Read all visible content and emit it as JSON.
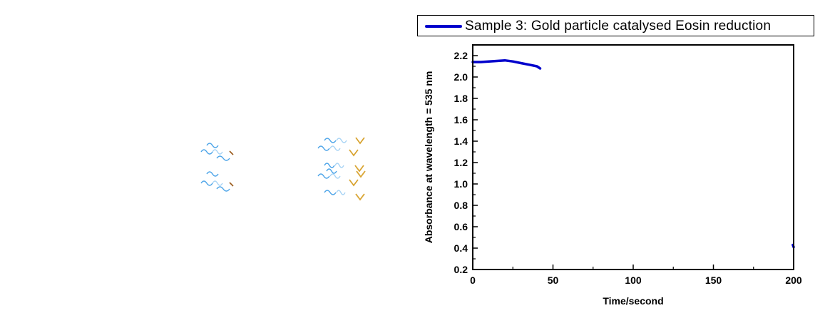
{
  "chart_data": {
    "type": "line",
    "legend_placement": "top",
    "grid": false,
    "xlabel": "Time/second",
    "ylabel": "Absorbance at wavelength = 535 nm",
    "xlim": [
      0,
      200
    ],
    "ylim": [
      0.2,
      2.3
    ],
    "xticks": [
      0,
      50,
      100,
      150,
      200
    ],
    "xtick_labels": [
      "0",
      "50",
      "100",
      "150",
      "200"
    ],
    "yticks": [
      0.2,
      0.4,
      0.6,
      0.8,
      1.0,
      1.2,
      1.4,
      1.6,
      1.8,
      2.0,
      2.2
    ],
    "ytick_labels": [
      "0.2",
      "0.4",
      "0.6",
      "0.8",
      "1.0",
      "1.2",
      "1.4",
      "1.6",
      "1.8",
      "2.0",
      "2.2"
    ],
    "series": [
      {
        "name": "Sample 3: Gold particle catalysed Eosin reduction",
        "color": "#0000cc",
        "x": [
          0,
          5,
          10,
          15,
          20,
          25,
          30,
          35,
          40,
          42
        ],
        "y": [
          2.14,
          2.14,
          2.145,
          2.15,
          2.155,
          2.145,
          2.13,
          2.115,
          2.1,
          2.08
        ]
      },
      {
        "name": "",
        "color": "#0000cc",
        "x": [
          199.5,
          200
        ],
        "y": [
          0.43,
          0.41
        ]
      }
    ]
  },
  "decorations": {
    "wave_colors": [
      "#4aa3e8",
      "#a9d4f5",
      "#d9a533"
    ]
  }
}
